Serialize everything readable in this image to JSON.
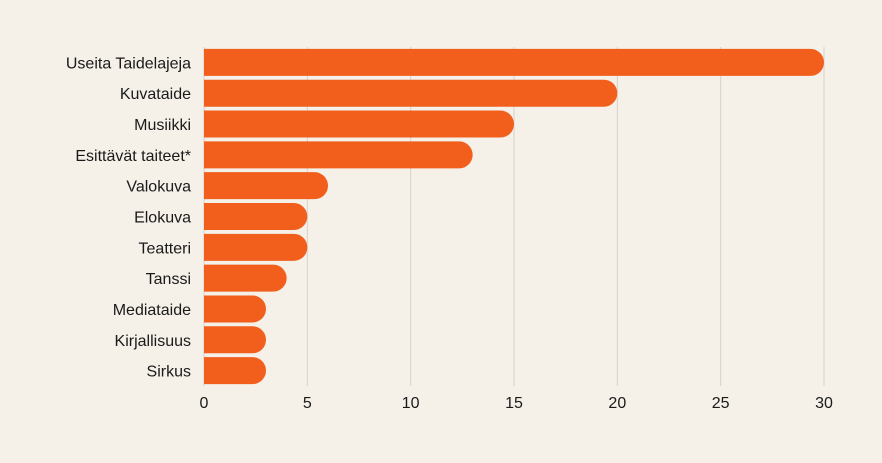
{
  "chart_data": {
    "type": "bar",
    "orientation": "horizontal",
    "categories": [
      "Useita Taidelajeja",
      "Kuvataide",
      "Musiikki",
      "Esittävät taiteet*",
      "Valokuva",
      "Elokuva",
      "Teatteri",
      "Tanssi",
      "Mediataide",
      "Kirjallisuus",
      "Sirkus"
    ],
    "values": [
      30,
      20,
      15,
      13,
      6,
      5,
      5,
      4,
      3,
      3,
      3
    ],
    "xlim": [
      0,
      30
    ],
    "xticks": [
      "0",
      "5",
      "10",
      "15",
      "20",
      "25",
      "30"
    ],
    "grid": "vertical",
    "legend": "none",
    "bar_color": "#f25f1c",
    "grid_color": "#d6d1c9",
    "background": "#f5f0e8"
  }
}
